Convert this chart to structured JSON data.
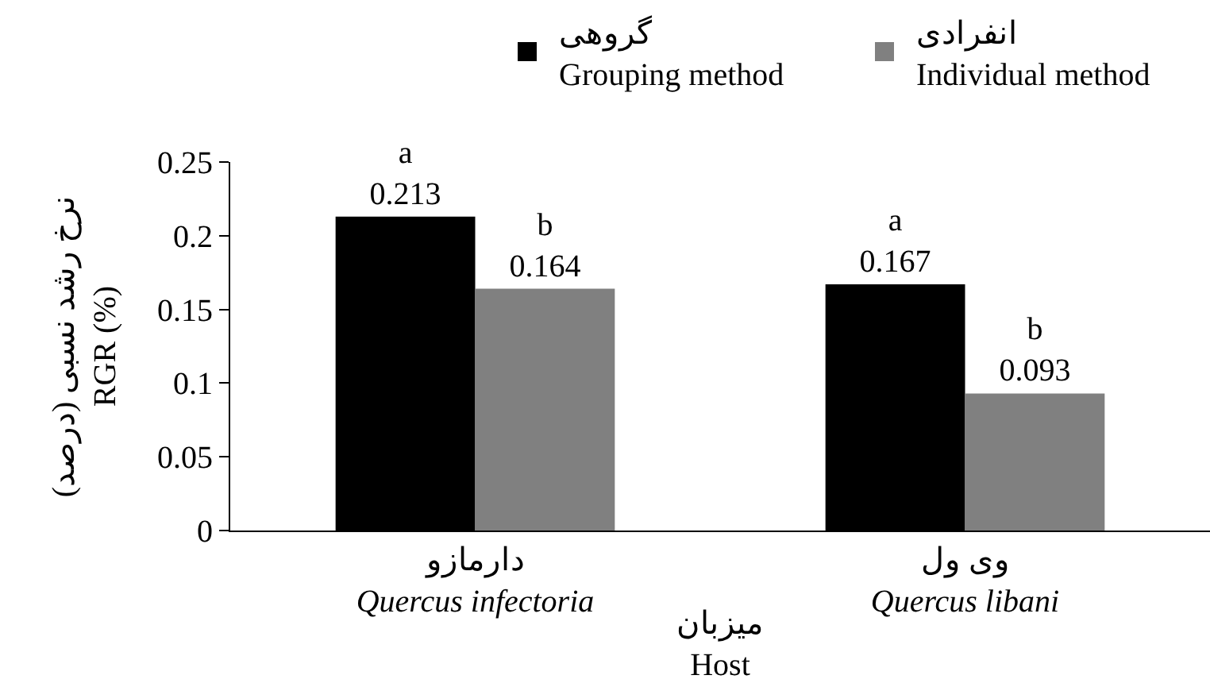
{
  "chart_data": {
    "type": "bar",
    "xlabel": "میزبان\nHost",
    "ylabel": "نرخ رشد نسبی (درصد)\nRGR (%)",
    "categories": [
      "دارمازو\nQuercus infectoria",
      "وی ول\nQuercus libani"
    ],
    "series": [
      {
        "name": "گروهی\nGrouping method",
        "color": "#000000",
        "values": [
          0.213,
          0.167
        ],
        "value_labels": [
          "a\n0.213",
          "a\n0.167"
        ]
      },
      {
        "name": "انفرادی\nIndividual method",
        "color": "#808080",
        "values": [
          0.164,
          0.093
        ],
        "value_labels": [
          "b\n0.164",
          "b\n0.093"
        ]
      }
    ],
    "ylim": [
      0,
      0.25
    ],
    "yticks": [
      0,
      0.05,
      {
        "value": 0.1,
        "label": "0.1"
      },
      0.15,
      {
        "value": 0.2,
        "label": "0.2"
      },
      0.25
    ],
    "grid": false,
    "legend": "top right"
  }
}
